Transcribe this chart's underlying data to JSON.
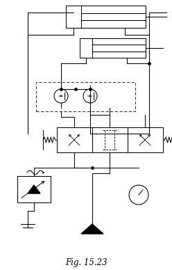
{
  "title": "Fig. 15.23",
  "bg_color": "#ffffff",
  "line_color": "#000000",
  "figsize": [
    2.48,
    3.88
  ],
  "dpi": 100
}
